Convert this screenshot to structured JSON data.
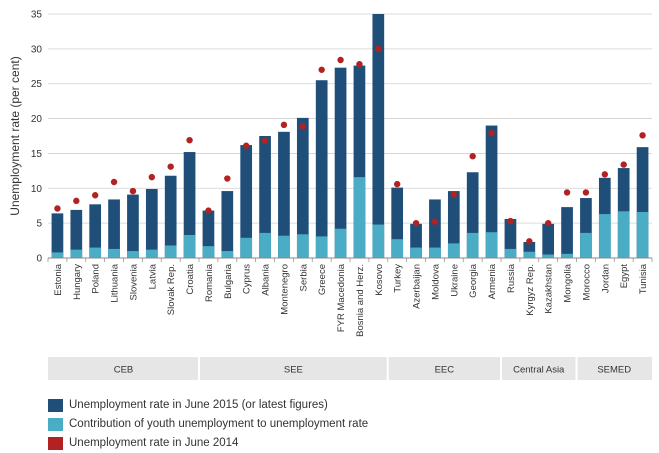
{
  "chart_data": {
    "type": "bar",
    "ylabel": "Unemployment rate (per cent)",
    "ylim": [
      0,
      35
    ],
    "yticks": [
      0,
      5,
      10,
      15,
      20,
      25,
      30,
      35
    ],
    "grid": true,
    "categories": [
      "Estonia",
      "Hungary",
      "Poland",
      "Lithuania",
      "Slovenia",
      "Latvia",
      "Slovak Rep.",
      "Croatia",
      "Romania",
      "Bulgaria",
      "Cyprus",
      "Albania",
      "Montenegro",
      "Serbia",
      "Greece",
      "FYR Macedonia",
      "Bosnia and Herz.",
      "Kosovo",
      "Turkey",
      "Azerbaijan",
      "Moldova",
      "Ukraine",
      "Georgia",
      "Armenia",
      "Russia",
      "Kyrgyz Rep.",
      "Kazakhstan",
      "Mongolia",
      "Morocco",
      "Jordan",
      "Egypt",
      "Tunisia"
    ],
    "series": [
      {
        "name": "Unemployment rate in June 2015 (or latest figures)",
        "color": "#1f4e79",
        "values": [
          6.4,
          6.9,
          7.7,
          8.4,
          9.1,
          9.9,
          11.8,
          15.2,
          6.8,
          9.6,
          16.2,
          17.5,
          18.1,
          20.1,
          25.5,
          27.3,
          27.6,
          35.0,
          10.1,
          4.9,
          8.4,
          9.6,
          12.3,
          19.0,
          5.6,
          2.3,
          4.9,
          7.3,
          8.6,
          11.5,
          12.9,
          15.9
        ]
      },
      {
        "name": "Contribution of youth unemployment to unemployment rate",
        "color": "#4bacc6",
        "values": [
          0.8,
          1.2,
          1.5,
          1.3,
          1.0,
          1.2,
          1.8,
          3.3,
          1.7,
          1.0,
          2.9,
          3.6,
          3.2,
          3.4,
          3.1,
          4.2,
          11.6,
          4.8,
          2.7,
          1.5,
          1.5,
          2.1,
          3.6,
          3.7,
          1.3,
          0.9,
          0.5,
          0.6,
          3.6,
          6.3,
          6.7,
          6.6
        ]
      },
      {
        "name": "Unemployment rate in June 2014",
        "color": "#b22222",
        "values": [
          7.1,
          8.2,
          9.0,
          10.9,
          9.6,
          11.6,
          13.1,
          16.9,
          6.8,
          11.4,
          16.1,
          16.8,
          19.1,
          18.9,
          27.0,
          28.4,
          27.8,
          30.0,
          10.6,
          5.0,
          5.2,
          9.1,
          14.6,
          17.9,
          5.3,
          2.4,
          5.0,
          9.4,
          9.4,
          12.0,
          13.4,
          17.6
        ]
      }
    ],
    "groups": [
      {
        "label": "CEB",
        "count": 8
      },
      {
        "label": "SEE",
        "count": 10
      },
      {
        "label": "EEC",
        "count": 6
      },
      {
        "label": "Central Asia",
        "count": 4
      },
      {
        "label": "SEMED",
        "count": 4
      }
    ],
    "legend_position": "bottom-left"
  },
  "legend": [
    {
      "label": "Unemployment rate in June 2015 (or latest figures)",
      "color": "#1f4e79"
    },
    {
      "label": "Contribution of youth unemployment to unemployment rate",
      "color": "#4bacc6"
    },
    {
      "label": "Unemployment rate in June 2014",
      "color": "#b22222"
    }
  ]
}
